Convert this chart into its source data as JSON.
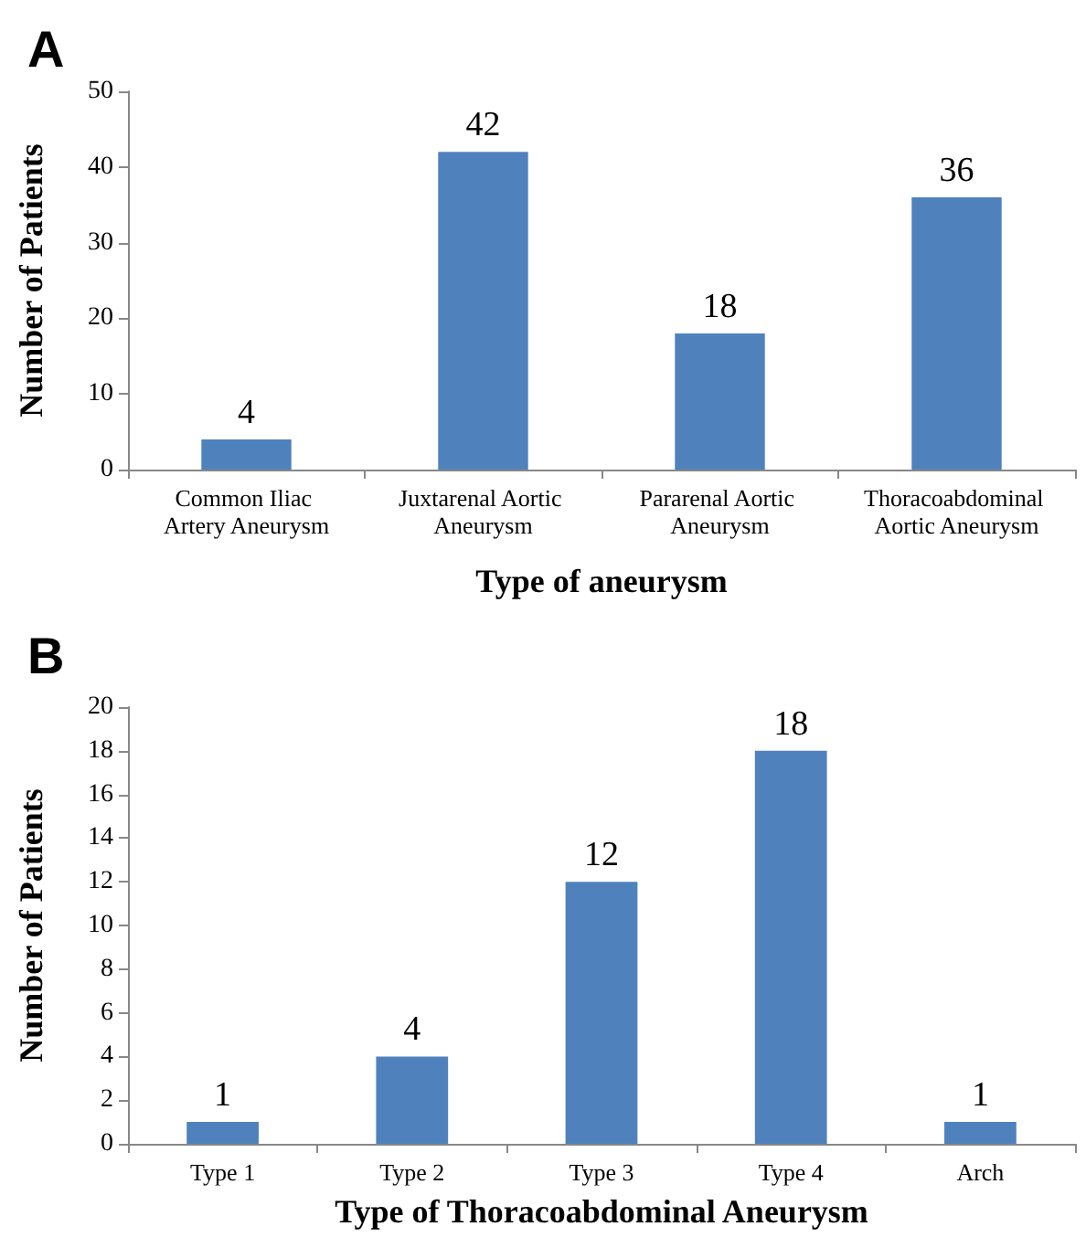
{
  "chart_data": [
    {
      "type": "bar",
      "title": "A",
      "xlabel": "Type of aneurysm",
      "ylabel": "Number of Patients",
      "categories": [
        "Common Iliac Artery Aneurysm",
        "Juxtarenal Aortic Aneurysm",
        "Pararenal Aortic Aneurysm",
        "Thoracoabdominal Aortic Aneurysm"
      ],
      "values": [
        4,
        42,
        18,
        36
      ],
      "color": "#4f81bd",
      "ylim": [
        0,
        50
      ],
      "yticks": [
        0,
        10,
        20,
        30,
        40,
        50
      ],
      "grid": false,
      "data_labels": true
    },
    {
      "type": "bar",
      "title": "B",
      "xlabel": "Type of Thoracoabdominal Aneurysm",
      "ylabel": "Number of Patients",
      "categories": [
        "Type 1",
        "Type 2",
        "Type 3",
        "Type 4",
        "Arch"
      ],
      "values": [
        1,
        4,
        12,
        18,
        1
      ],
      "color": "#4f81bd",
      "ylim": [
        0,
        20
      ],
      "yticks": [
        0,
        2,
        4,
        6,
        8,
        10,
        12,
        14,
        16,
        18,
        20
      ],
      "grid": false,
      "data_labels": true
    }
  ]
}
